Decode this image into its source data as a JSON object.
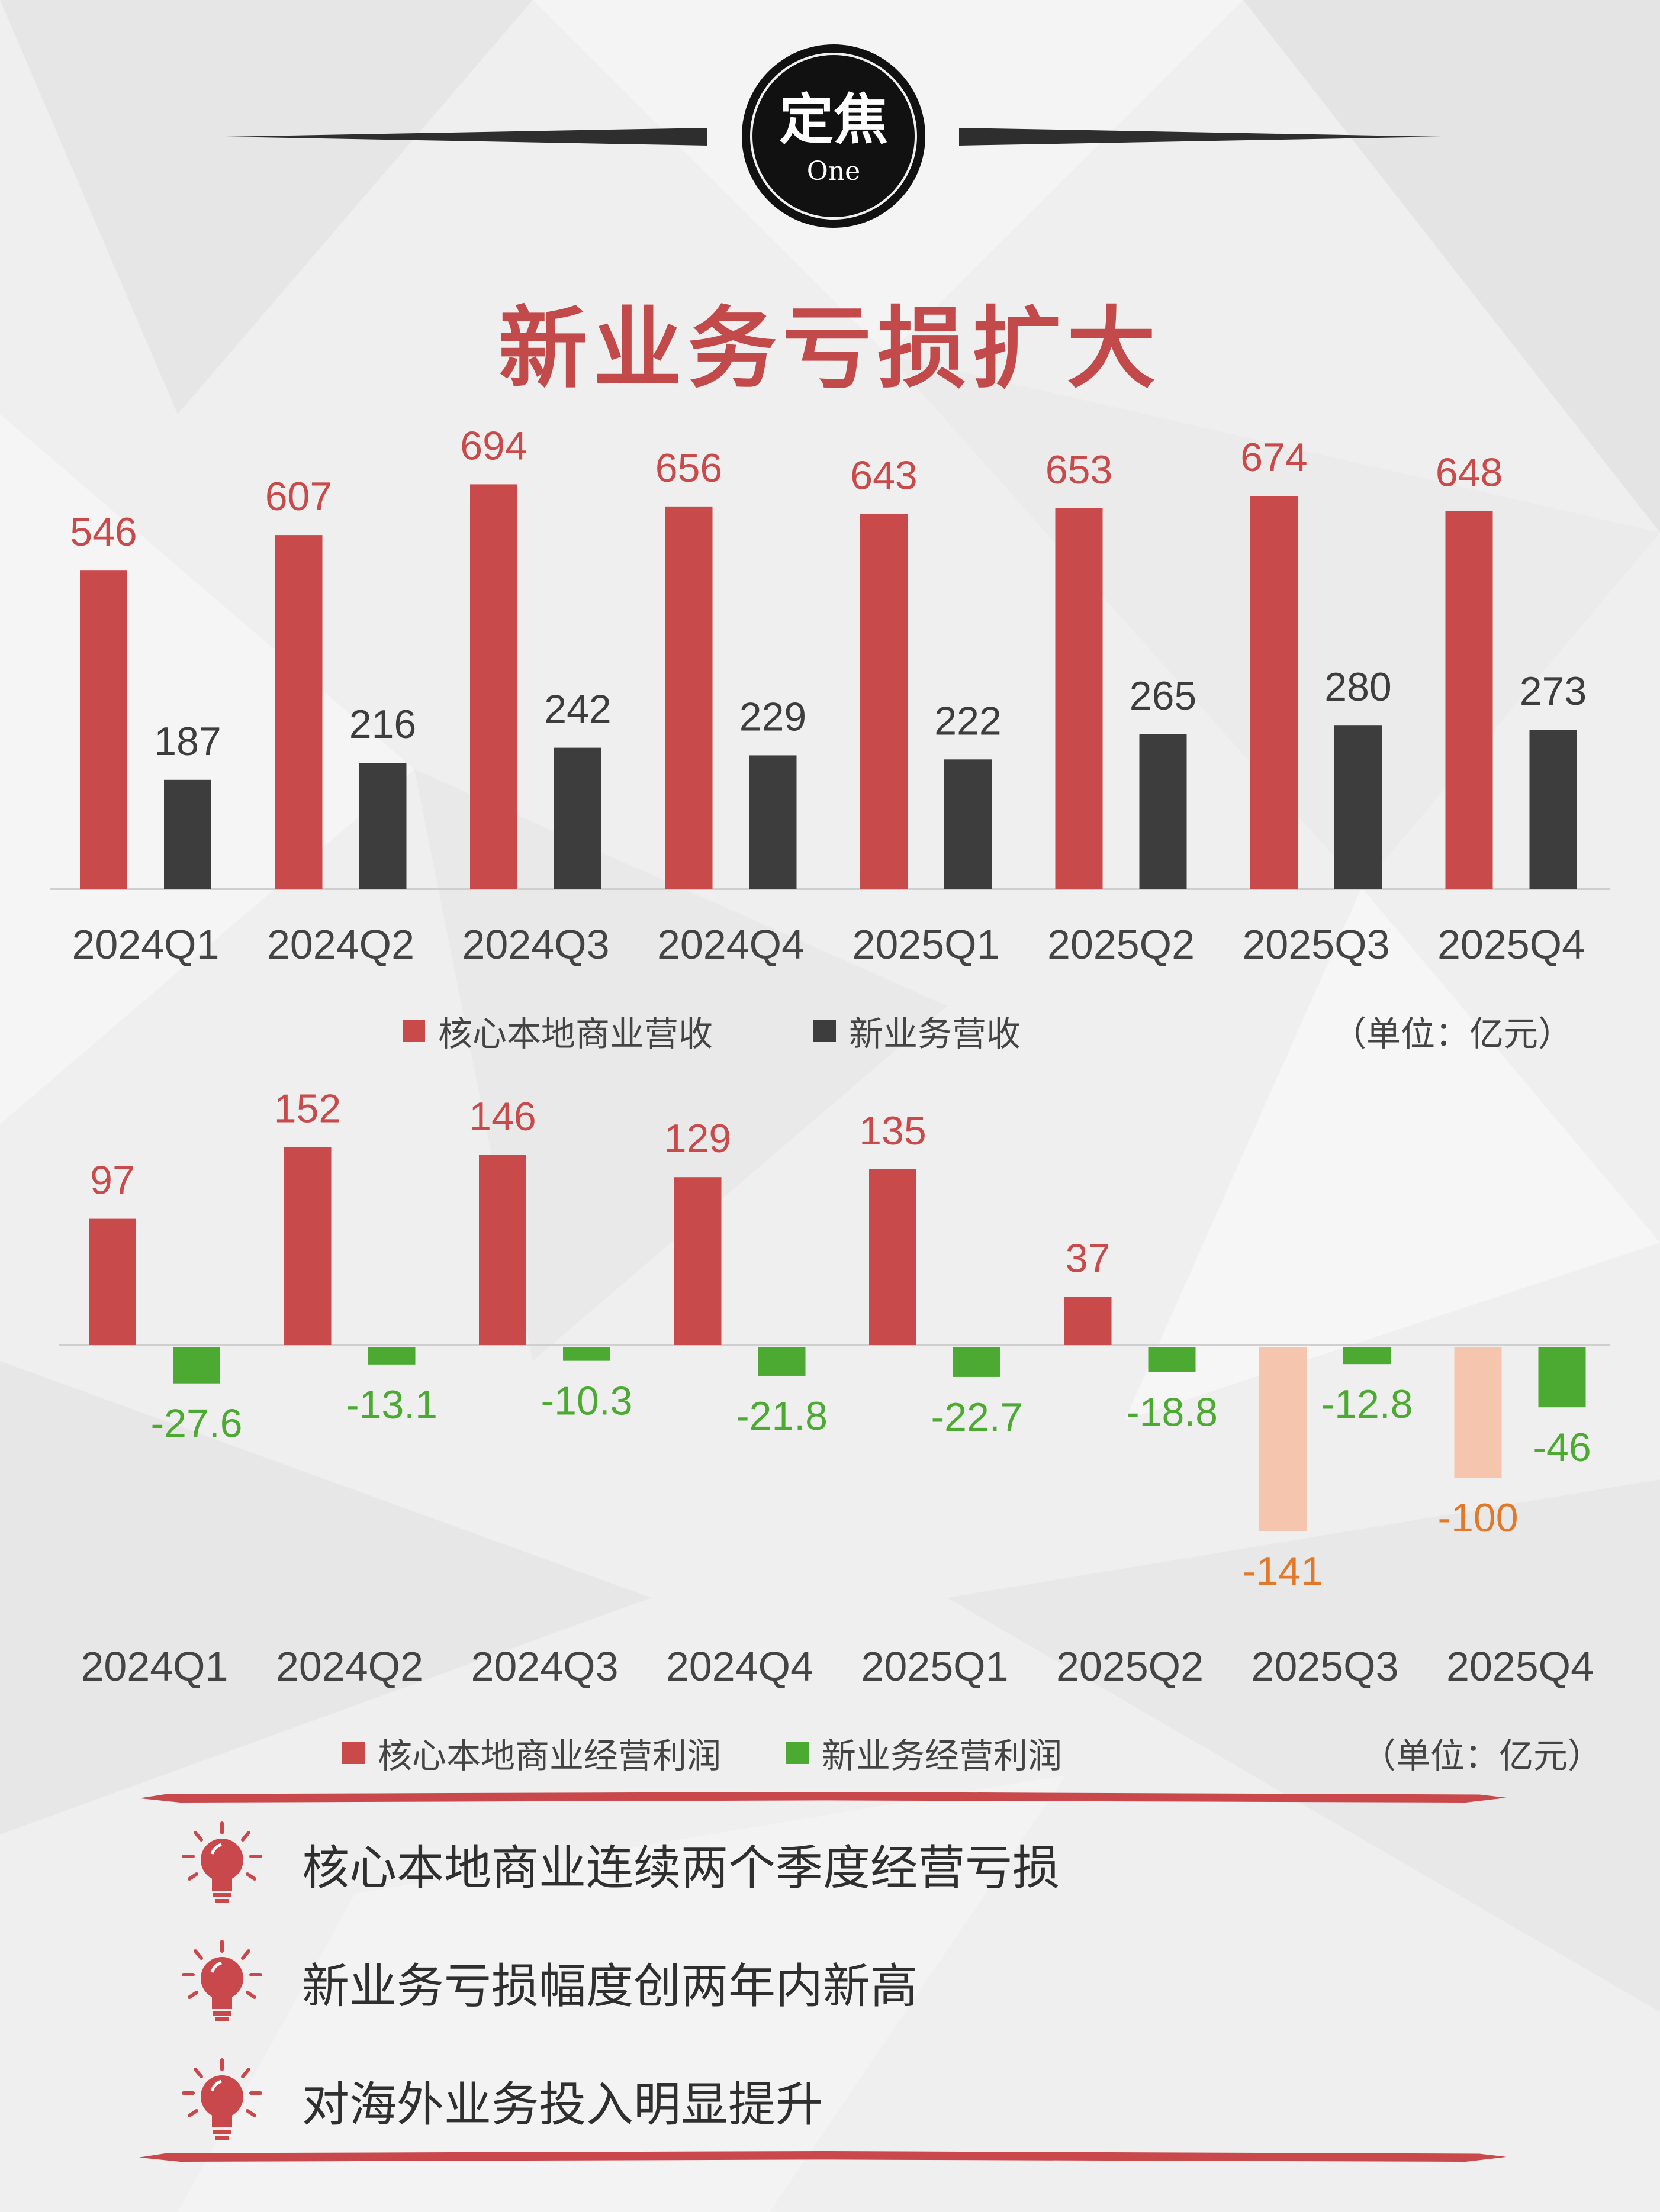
{
  "header": {
    "badge_main": "定焦",
    "badge_sub": "One",
    "title": "新业务亏损扩大"
  },
  "colors": {
    "core": "#c94a4a",
    "new_business": "#3d3d3d",
    "profit_positive": "#c94a4a",
    "profit_negative_core": "#f5c5ad",
    "profit_new": "#4caa33",
    "label_negative_core": "#e07a2a"
  },
  "chart_data": [
    {
      "type": "bar",
      "categories": [
        "2024Q1",
        "2024Q2",
        "2024Q3",
        "2024Q4",
        "2025Q1",
        "2025Q2",
        "2025Q3",
        "2025Q4"
      ],
      "series": [
        {
          "name": "核心本地商业营收",
          "values": [
            546,
            607,
            694,
            656,
            643,
            653,
            674,
            648
          ]
        },
        {
          "name": "新业务营收",
          "values": [
            187,
            216,
            242,
            229,
            222,
            265,
            280,
            273
          ]
        }
      ],
      "unit": "（单位：亿元）"
    },
    {
      "type": "bar",
      "categories": [
        "2024Q1",
        "2024Q2",
        "2024Q3",
        "2024Q4",
        "2025Q1",
        "2025Q2",
        "2025Q3",
        "2025Q4"
      ],
      "series": [
        {
          "name": "核心本地商业经营利润",
          "values": [
            97,
            152,
            146,
            129,
            135,
            37,
            -141,
            -100
          ]
        },
        {
          "name": "新业务经营利润",
          "values": [
            -27.6,
            -13.1,
            -10.3,
            -21.8,
            -22.7,
            -18.8,
            -12.8,
            -46
          ]
        }
      ],
      "unit": "（单位：亿元）"
    }
  ],
  "notes": [
    "核心本地商业连续两个季度经营亏损",
    "新业务亏损幅度创两年内新高",
    "对海外业务投入明显提升"
  ]
}
